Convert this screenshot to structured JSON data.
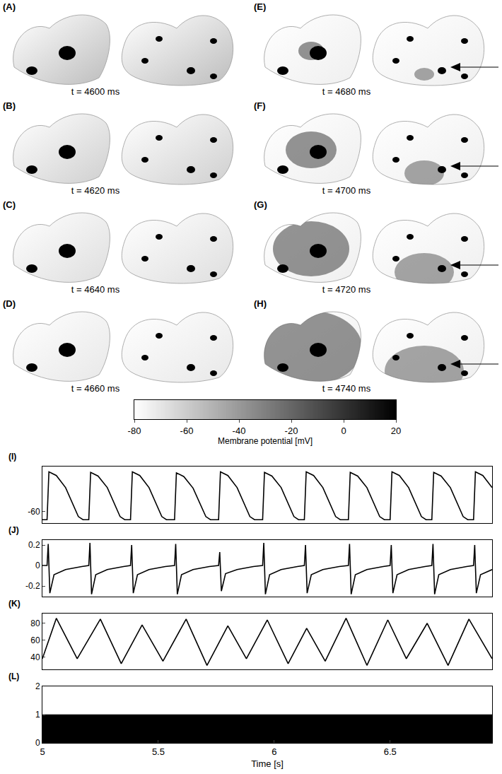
{
  "panels": [
    {
      "label": "(A)",
      "caption": "t = 4600 ms"
    },
    {
      "label": "(B)",
      "caption": "t = 4620 ms"
    },
    {
      "label": "(C)",
      "caption": "t = 4640 ms"
    },
    {
      "label": "(D)",
      "caption": "t = 4660 ms"
    },
    {
      "label": "(E)",
      "caption": "t = 4680 ms",
      "arrow": true
    },
    {
      "label": "(F)",
      "caption": "t = 4700 ms",
      "arrow": true
    },
    {
      "label": "(G)",
      "caption": "t = 4720 ms",
      "arrow": true
    },
    {
      "label": "(H)",
      "caption": "t = 4740 ms",
      "arrow": true
    }
  ],
  "colorbar": {
    "range": [
      -80,
      20
    ],
    "ticks": [
      -80,
      -60,
      -40,
      -20,
      0,
      20
    ],
    "label": "Membrane potential [mV]"
  },
  "chart_data": [
    {
      "type": "line",
      "title": "(I)",
      "color": "#000000",
      "tick_labels": "y",
      "xlim": [
        5,
        6.94
      ],
      "ylim": [
        -82,
        25
      ],
      "yticks": [
        -60
      ],
      "x": [
        5.0,
        5.02,
        5.028,
        5.06,
        5.1,
        5.13,
        5.155,
        5.175,
        5.2,
        5.208,
        5.24,
        5.28,
        5.31,
        5.335,
        5.355,
        5.38,
        5.388,
        5.42,
        5.46,
        5.49,
        5.515,
        5.535,
        5.57,
        5.578,
        5.61,
        5.65,
        5.68,
        5.705,
        5.725,
        5.76,
        5.768,
        5.8,
        5.84,
        5.87,
        5.895,
        5.915,
        5.95,
        5.958,
        5.99,
        6.03,
        6.06,
        6.085,
        6.105,
        6.13,
        6.138,
        6.17,
        6.21,
        6.24,
        6.265,
        6.285,
        6.32,
        6.328,
        6.36,
        6.4,
        6.43,
        6.455,
        6.475,
        6.5,
        6.508,
        6.54,
        6.58,
        6.61,
        6.635,
        6.655,
        6.68,
        6.688,
        6.72,
        6.76,
        6.79,
        6.815,
        6.835,
        6.86,
        6.868,
        6.9,
        6.94
      ],
      "values": [
        -76,
        -76,
        15,
        8,
        -15,
        -45,
        -70,
        -76,
        -76,
        14,
        7,
        -15,
        -45,
        -70,
        -76,
        -76,
        15,
        8,
        -15,
        -45,
        -70,
        -76,
        -76,
        13,
        6,
        -16,
        -46,
        -70,
        -76,
        -76,
        15,
        8,
        -15,
        -45,
        -70,
        -76,
        -76,
        14,
        7,
        -15,
        -45,
        -70,
        -76,
        -76,
        15,
        8,
        -15,
        -45,
        -70,
        -76,
        -76,
        14,
        7,
        -15,
        -45,
        -70,
        -76,
        -76,
        15,
        8,
        -15,
        -45,
        -70,
        -76,
        -76,
        14,
        7,
        -15,
        -45,
        -70,
        -76,
        -76,
        15,
        8,
        -15
      ]
    },
    {
      "type": "line",
      "title": "(J)",
      "color": "#000000",
      "tick_labels": "y",
      "xlim": [
        5,
        6.94
      ],
      "ylim": [
        -0.3,
        0.25
      ],
      "yticks": [
        -0.2,
        0,
        0.2
      ],
      "x": [
        5.0,
        5.02,
        5.025,
        5.032,
        5.05,
        5.1,
        5.17,
        5.2,
        5.205,
        5.212,
        5.23,
        5.28,
        5.35,
        5.38,
        5.385,
        5.392,
        5.41,
        5.46,
        5.53,
        5.57,
        5.575,
        5.582,
        5.6,
        5.65,
        5.72,
        5.76,
        5.765,
        5.772,
        5.79,
        5.84,
        5.91,
        5.95,
        5.955,
        5.962,
        5.98,
        6.03,
        6.1,
        6.13,
        6.135,
        6.142,
        6.16,
        6.21,
        6.28,
        6.32,
        6.325,
        6.332,
        6.35,
        6.4,
        6.47,
        6.5,
        6.505,
        6.512,
        6.53,
        6.58,
        6.65,
        6.68,
        6.685,
        6.692,
        6.71,
        6.76,
        6.83,
        6.86,
        6.865,
        6.872,
        6.89,
        6.94
      ],
      "values": [
        0.0,
        0.0,
        0.21,
        -0.27,
        -0.09,
        -0.04,
        -0.01,
        0.0,
        0.22,
        -0.28,
        -0.09,
        -0.04,
        -0.01,
        0.0,
        0.2,
        -0.27,
        -0.09,
        -0.04,
        -0.01,
        0.0,
        0.21,
        -0.28,
        -0.09,
        -0.04,
        -0.01,
        0.0,
        0.13,
        -0.25,
        -0.08,
        -0.04,
        -0.01,
        0.0,
        0.22,
        -0.28,
        -0.09,
        -0.04,
        -0.01,
        0.0,
        0.2,
        -0.27,
        -0.09,
        -0.04,
        -0.01,
        0.0,
        0.21,
        -0.28,
        -0.09,
        -0.04,
        -0.01,
        0.0,
        0.2,
        -0.27,
        -0.09,
        -0.04,
        -0.01,
        0.0,
        0.21,
        -0.28,
        -0.09,
        -0.04,
        -0.01,
        0.0,
        0.2,
        -0.27,
        -0.09,
        -0.04
      ]
    },
    {
      "type": "line",
      "title": "(K)",
      "color": "#000000",
      "tick_labels": "y",
      "xlim": [
        5,
        6.94
      ],
      "ylim": [
        25,
        92
      ],
      "yticks": [
        40,
        60,
        80
      ],
      "x": [
        5.0,
        5.06,
        5.15,
        5.25,
        5.34,
        5.43,
        5.52,
        5.62,
        5.71,
        5.8,
        5.88,
        5.97,
        6.06,
        6.14,
        6.22,
        6.31,
        6.4,
        6.49,
        6.57,
        6.66,
        6.75,
        6.84,
        6.94
      ],
      "values": [
        38,
        86,
        38,
        85,
        32,
        78,
        35,
        85,
        30,
        77,
        38,
        84,
        32,
        74,
        35,
        86,
        30,
        84,
        38,
        80,
        30,
        85,
        38
      ]
    },
    {
      "type": "area",
      "title": "(L)",
      "color": "#000000",
      "xlim": [
        5,
        6.94
      ],
      "xticks": [
        5,
        5.5,
        6,
        6.5
      ],
      "xlabel": "Time [s]",
      "ylim": [
        0,
        2
      ],
      "yticks": [
        0,
        1,
        2
      ],
      "x": [
        5,
        6.94
      ],
      "values": [
        1,
        1
      ]
    }
  ]
}
